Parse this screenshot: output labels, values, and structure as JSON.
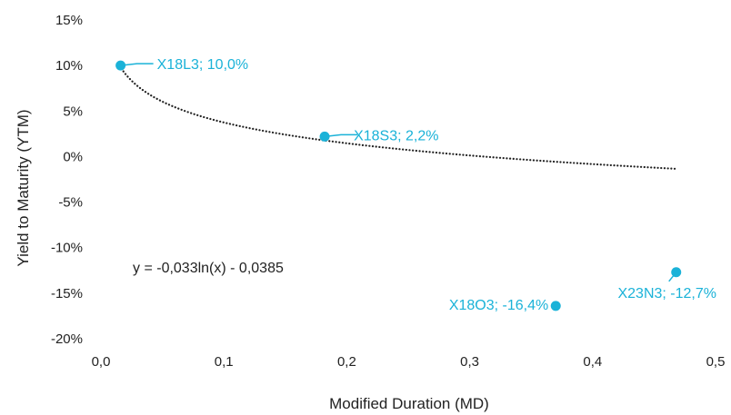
{
  "chart_data": {
    "type": "scatter",
    "xlabel": "Modified Duration (MD)",
    "ylabel": "Yield to Maturity (YTM)",
    "xlim": [
      0,
      0.5
    ],
    "ylim": [
      -0.2,
      0.15
    ],
    "x_ticks": [
      "0,0",
      "0,1",
      "0,2",
      "0,3",
      "0,4",
      "0,5"
    ],
    "y_ticks": [
      "15%",
      "10%",
      "5%",
      "0%",
      "-5%",
      "-10%",
      "-15%",
      "-20%"
    ],
    "grid": false,
    "point_color": "#1ab2d8",
    "trendline_color": "#222222",
    "points": [
      {
        "label": "X18L3; 10,0%",
        "x": 0.016,
        "y": 0.1
      },
      {
        "label": "X18S3; 2,2%",
        "x": 0.182,
        "y": 0.022
      },
      {
        "label": "X18O3; -16,4%",
        "x": 0.37,
        "y": -0.164
      },
      {
        "label": "X23N3; -12,7%",
        "x": 0.468,
        "y": -0.127
      }
    ],
    "trendline": {
      "type": "logarithmic",
      "a": -0.033,
      "b": -0.0385,
      "equation": "y = -0,033ln(x) - 0,0385"
    }
  }
}
